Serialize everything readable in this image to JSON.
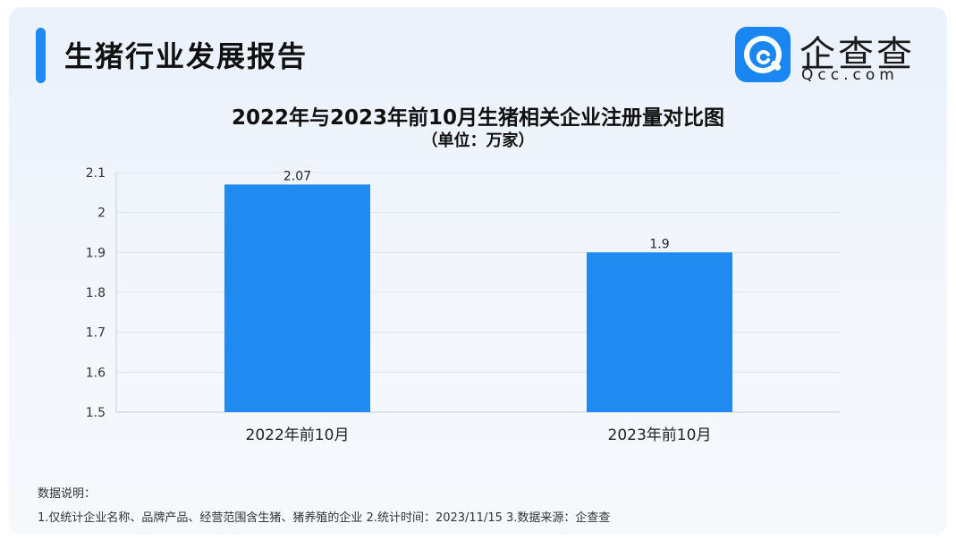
{
  "header": {
    "title": "生猪行业发展报告"
  },
  "logo": {
    "cn": "企查查",
    "en": "Qcc.com",
    "icon": "qcc-logo-icon"
  },
  "chart_data": {
    "type": "bar",
    "title": "2022年与2023年前10月生猪相关企业注册量对比图",
    "subtitle": "（单位：万家）",
    "categories": [
      "2022年前10月",
      "2023年前10月"
    ],
    "values": [
      2.07,
      1.9
    ],
    "data_labels": [
      "2.07",
      "1.9"
    ],
    "yticks": [
      "1.5",
      "1.6",
      "1.7",
      "1.8",
      "1.9",
      "2",
      "2.1"
    ],
    "ylim": [
      1.5,
      2.1
    ],
    "grid": true,
    "legend": "none",
    "bar_color": "#1f8af0"
  },
  "notes": {
    "heading": "数据说明：",
    "text": "1.仅统计企业名称、品牌产品、经营范围含生猪、猪养殖的企业   2.统计时间：2023/11/15   3.数据来源：企查查"
  }
}
